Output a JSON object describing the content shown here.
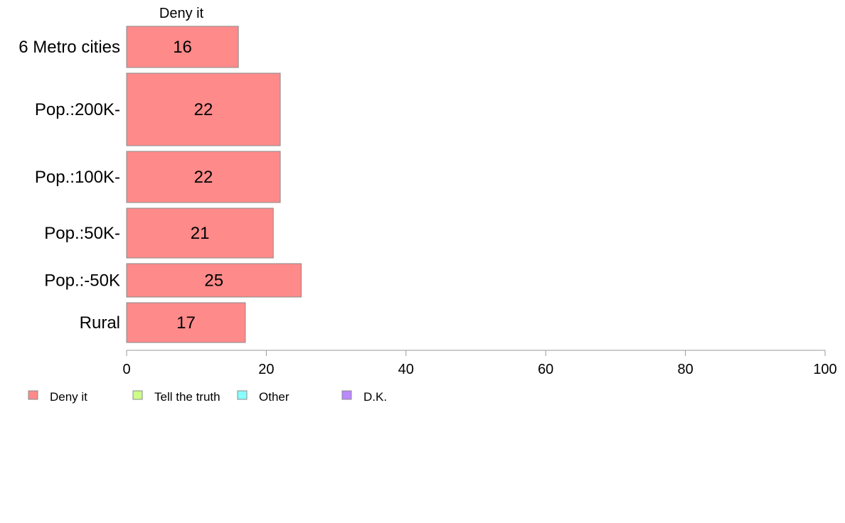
{
  "chart_data": {
    "type": "bar",
    "orientation": "horizontal",
    "stacked": true,
    "categories": [
      "6 Metro cities",
      "Pop.:200K-",
      "Pop.:100K-",
      "Pop.:50K-",
      "Pop.:-50K",
      "Rural"
    ],
    "series": [
      {
        "name": "Deny it",
        "color": "#ff8a8a",
        "values": [
          16,
          22,
          22,
          21,
          25,
          17
        ],
        "labels": [
          "16",
          "22",
          "22",
          "21",
          "25",
          "17"
        ]
      },
      {
        "name": "Tell the truth",
        "color": "#ccff88",
        "values": [
          null,
          null,
          null,
          null,
          null,
          null
        ]
      },
      {
        "name": "Other",
        "color": "#88ffff",
        "values": [
          null,
          null,
          null,
          null,
          null,
          null
        ]
      },
      {
        "name": "D.K.",
        "color": "#bb88ff",
        "values": [
          null,
          null,
          null,
          null,
          null,
          null
        ]
      }
    ],
    "column_header": "Deny it",
    "xlim": [
      0,
      100
    ],
    "xticks": [
      0,
      20,
      40,
      60,
      80,
      100
    ],
    "xtick_labels": [
      "0",
      "20",
      "40",
      "60",
      "80",
      "100"
    ],
    "grid": false,
    "legend_position": "bottom-left"
  }
}
